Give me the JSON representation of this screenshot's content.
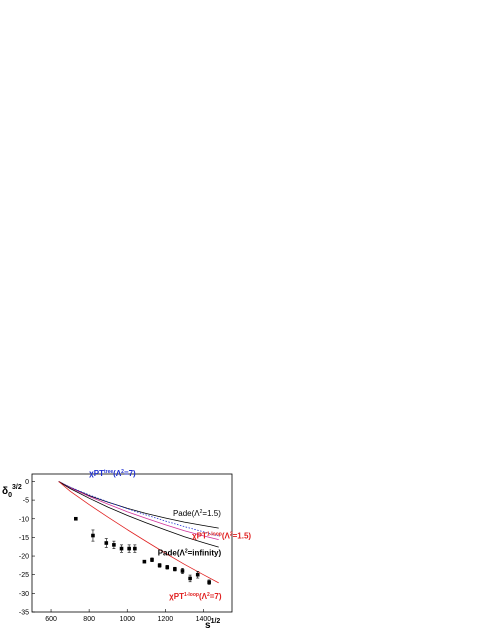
{
  "chart_data": {
    "type": "line",
    "xlabel": "s",
    "xlabel_sup": "1/2",
    "ylabel": "δ",
    "ylabel_sub": "0",
    "ylabel_sup": "3/2",
    "xlim": [
      500,
      1550
    ],
    "ylim": [
      -35,
      2
    ],
    "x_ticks": [
      600,
      800,
      1000,
      1200,
      1400
    ],
    "y_ticks": [
      0,
      -5,
      -10,
      -15,
      -20,
      -25,
      -30,
      -35
    ],
    "grid": false,
    "series": [
      {
        "name": "Pade(Λ²=1.5)",
        "color": "#000000",
        "style": "solid",
        "x": [
          640,
          700,
          800,
          900,
          1000,
          1100,
          1200,
          1300,
          1400,
          1480
        ],
        "y": [
          0,
          -1.6,
          -3.8,
          -5.6,
          -7.2,
          -8.6,
          -9.8,
          -10.9,
          -11.8,
          -12.5
        ]
      },
      {
        "name": "χPT^tree(Λ²=7)",
        "color": "#1f2fd0",
        "style": "dotted",
        "x": [
          640,
          700,
          800,
          900,
          1000,
          1100,
          1200,
          1300,
          1400,
          1480
        ],
        "y": [
          0,
          -1.5,
          -3.6,
          -5.5,
          -7.3,
          -9.0,
          -10.6,
          -12.1,
          -13.5,
          -14.6
        ]
      },
      {
        "name": "χPT^1-loop(Λ²=1.5)",
        "color": "#d0309a",
        "style": "solid",
        "x": [
          640,
          700,
          800,
          900,
          1000,
          1100,
          1200,
          1300,
          1400,
          1480
        ],
        "y": [
          0,
          -1.7,
          -4.0,
          -6.1,
          -8.1,
          -9.9,
          -11.6,
          -13.2,
          -14.6,
          -15.6
        ]
      },
      {
        "name": "Pade(Λ²=infinity)",
        "color": "#000000",
        "style": "solid",
        "x": [
          640,
          700,
          800,
          900,
          1000,
          1100,
          1200,
          1300,
          1400,
          1480
        ],
        "y": [
          0,
          -1.9,
          -4.5,
          -6.9,
          -9.1,
          -11.1,
          -13.0,
          -14.8,
          -16.4,
          -17.6
        ]
      },
      {
        "name": "χPT^1-loop(Λ²=7)",
        "color": "#e02020",
        "style": "solid",
        "x": [
          640,
          700,
          800,
          900,
          1000,
          1100,
          1200,
          1300,
          1400,
          1480
        ],
        "y": [
          0,
          -2.6,
          -6.2,
          -9.6,
          -12.9,
          -16.1,
          -19.2,
          -22.2,
          -25.0,
          -27.2
        ]
      }
    ],
    "points": {
      "x": [
        730,
        820,
        890,
        930,
        970,
        1010,
        1040,
        1090,
        1130,
        1170,
        1210,
        1250,
        1290,
        1330,
        1370,
        1430
      ],
      "y": [
        -10.0,
        -14.5,
        -16.5,
        -17.0,
        -18.0,
        -18.0,
        -18.0,
        -21.5,
        -21.0,
        -22.5,
        -23.0,
        -23.5,
        -24.0,
        -26.0,
        -25.0,
        -27.0
      ],
      "err": [
        0,
        1.5,
        1.2,
        1.0,
        1.0,
        1.0,
        1.0,
        0,
        0.5,
        0.5,
        0.5,
        0.5,
        0.7,
        0.9,
        0.9,
        0.6
      ]
    },
    "annotations": [
      {
        "prefix": "χPT",
        "sup": "tree",
        "suffix": "(Λ",
        "sup2": "2",
        "tail": "=7)",
        "color": "#1f2fd0",
        "bold": true,
        "x": 800,
        "y": 1.5
      },
      {
        "prefix": "Pade(Λ",
        "sup": "2",
        "suffix": "=1.5)",
        "color": "#000000",
        "bold": false,
        "x": 1240,
        "y": -9.2
      },
      {
        "prefix": "χPT",
        "sup": "1-loop",
        "suffix": "(Λ",
        "sup2": "2",
        "tail": "=1.5)",
        "color": "#e02020",
        "bold": true,
        "x": 1340,
        "y": -15.3
      },
      {
        "prefix": "Pade(Λ",
        "sup": "2",
        "suffix": "=infinity)",
        "color": "#000000",
        "bold": true,
        "x": 1160,
        "y": -19.8
      },
      {
        "prefix": "χPT",
        "sup": "1-loop",
        "suffix": "(Λ",
        "sup2": "2",
        "tail": "=7)",
        "color": "#e02020",
        "bold": true,
        "x": 1220,
        "y": -31.5
      }
    ]
  }
}
